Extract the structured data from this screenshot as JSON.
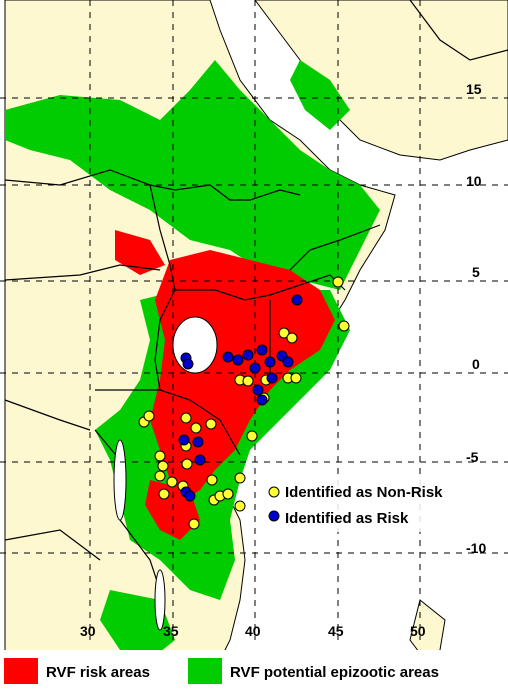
{
  "map": {
    "lat_labels": [
      "15",
      "10",
      "5",
      "0",
      "-5",
      "-10"
    ],
    "lon_labels": [
      "30",
      "35",
      "40",
      "45",
      "50"
    ],
    "colors": {
      "ocean": "#ffffff",
      "land": "#fdf8cf",
      "risk": "#ff0000",
      "epizootic": "#00cc00",
      "non_risk_marker": "#ffff33",
      "risk_marker": "#0000cc"
    }
  },
  "inset_legend": {
    "non_risk": "Identified as Non-Risk",
    "risk": "Identified as Risk"
  },
  "bottom_legend": {
    "risk_areas": "RVF risk areas",
    "epizootic_areas": "RVF potential epizootic areas"
  }
}
